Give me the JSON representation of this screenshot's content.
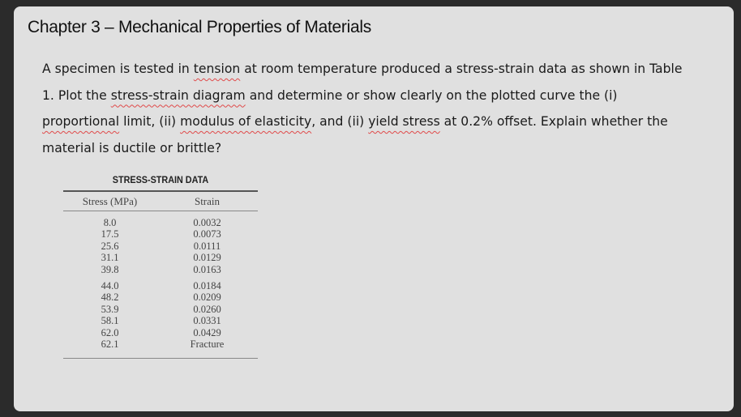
{
  "title": "Chapter 3 – Mechanical Properties of Materials",
  "problem": {
    "segments": [
      {
        "text": "A specimen is tested in ",
        "flag": false
      },
      {
        "text": "tension",
        "flag": true
      },
      {
        "text": " at room temperature produced a stress-strain data as shown in Table 1. Plot the ",
        "flag": false
      },
      {
        "text": "stress-strain diagram",
        "flag": true
      },
      {
        "text": " and determine or show clearly on the plotted curve the (i) ",
        "flag": false
      },
      {
        "text": "proportional",
        "flag": true
      },
      {
        "text": " limit, (ii) ",
        "flag": false
      },
      {
        "text": "modulus of elasticity",
        "flag": true
      },
      {
        "text": ", and (ii) ",
        "flag": false
      },
      {
        "text": "yield stress",
        "flag": true
      },
      {
        "text": " at 0.2% offset. Explain whether the material is ductile or brittle?",
        "flag": false
      }
    ]
  },
  "table": {
    "title": "STRESS-STRAIN DATA",
    "headers": [
      "Stress (MPa)",
      "Strain"
    ],
    "rows": [
      [
        "8.0",
        "0.0032"
      ],
      [
        "17.5",
        "0.0073"
      ],
      [
        "25.6",
        "0.0111"
      ],
      [
        "31.1",
        "0.0129"
      ],
      [
        "39.8",
        "0.0163"
      ],
      [
        "44.0",
        "0.0184"
      ],
      [
        "48.2",
        "0.0209"
      ],
      [
        "53.9",
        "0.0260"
      ],
      [
        "58.1",
        "0.0331"
      ],
      [
        "62.0",
        "0.0429"
      ],
      [
        "62.1",
        "Fracture"
      ]
    ]
  }
}
